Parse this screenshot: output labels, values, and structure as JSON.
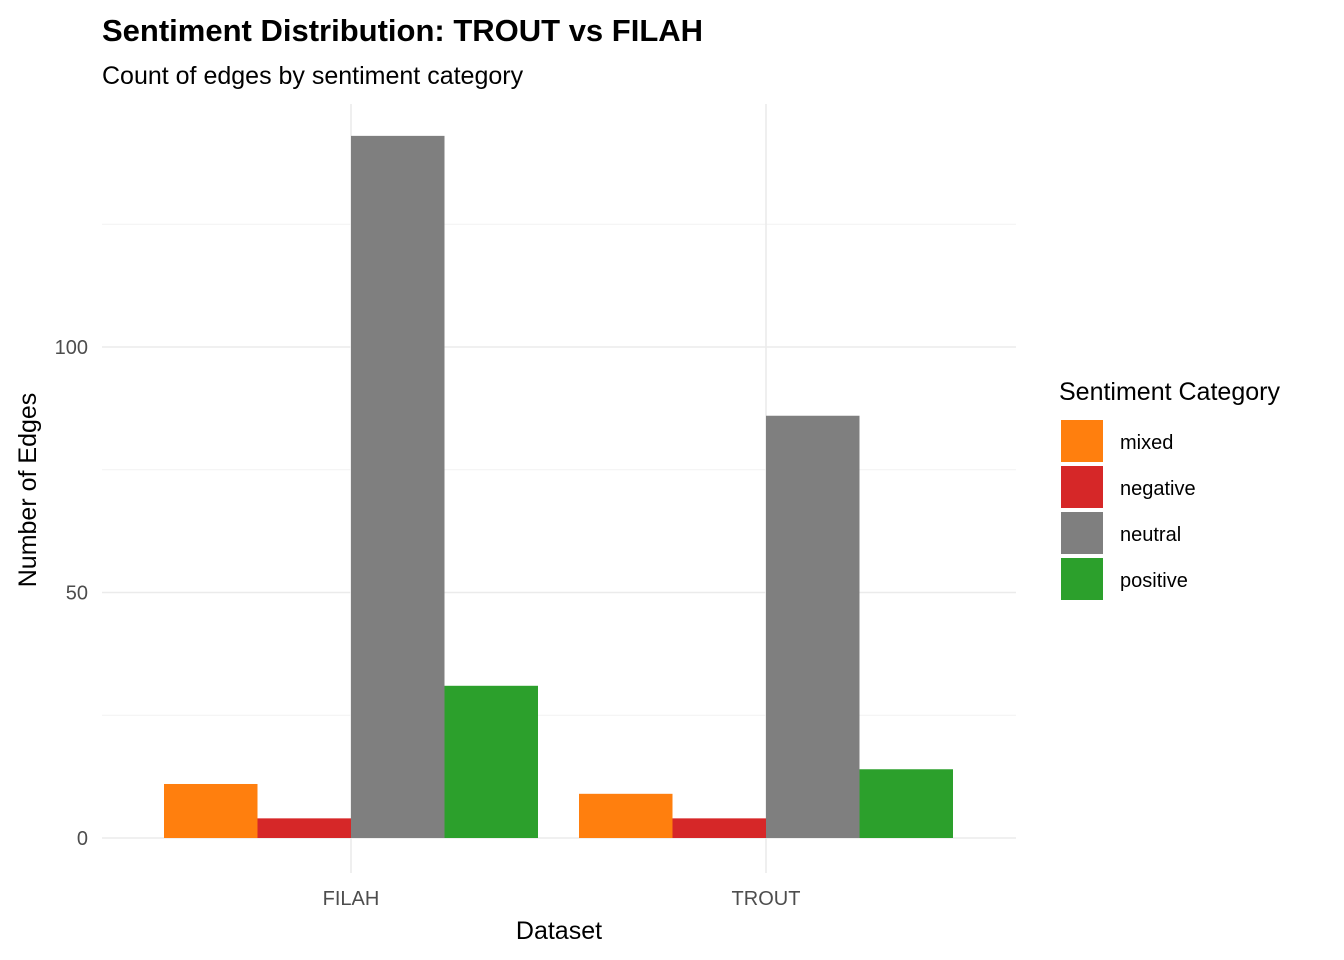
{
  "chart_data": {
    "type": "bar",
    "title": "Sentiment Distribution: TROUT vs FILAH",
    "subtitle": "Count of edges by sentiment category",
    "xlabel": "Dataset",
    "ylabel": "Number of Edges",
    "categories": [
      "FILAH",
      "TROUT"
    ],
    "series": [
      {
        "name": "mixed",
        "color": "#ff7f0e",
        "values": [
          11,
          9
        ]
      },
      {
        "name": "negative",
        "color": "#d62728",
        "values": [
          4,
          4
        ]
      },
      {
        "name": "neutral",
        "color": "#7f7f7f",
        "values": [
          143,
          86
        ]
      },
      {
        "name": "positive",
        "color": "#2ca02c",
        "values": [
          31,
          14
        ]
      }
    ],
    "ylim": [
      -6.5,
      150
    ],
    "yticks": [
      0,
      50,
      100
    ],
    "yticks_minor": [
      25,
      75,
      125
    ],
    "grid": true,
    "legend": {
      "title": "Sentiment Category",
      "position": "right"
    }
  }
}
